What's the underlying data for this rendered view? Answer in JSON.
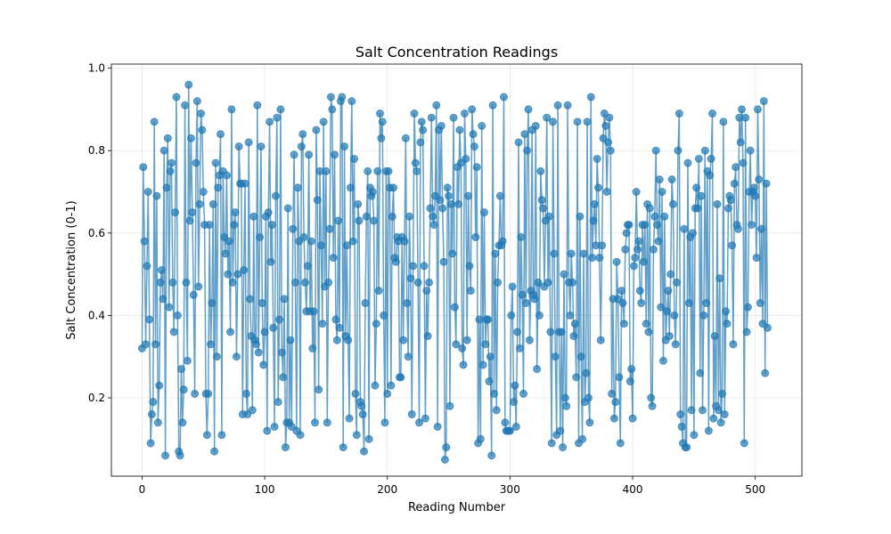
{
  "chart_data": {
    "type": "line",
    "title": "Salt Concentration Readings",
    "xlabel": "Reading Number",
    "ylabel": "Salt Concentration (0-1)",
    "xlim": [
      -25,
      538
    ],
    "ylim": [
      0.01,
      1.01
    ],
    "xticks": [
      0,
      100,
      200,
      300,
      400,
      500
    ],
    "yticks": [
      0.2,
      0.4,
      0.6,
      0.8,
      1.0
    ],
    "xtick_labels": [
      "0",
      "100",
      "200",
      "300",
      "400",
      "500"
    ],
    "ytick_labels": [
      "0.2",
      "0.4",
      "0.6",
      "0.8",
      "1.0"
    ],
    "grid": true,
    "markers": true,
    "color": "#1f77b4",
    "series": [
      {
        "x_start": 0,
        "values": [
          0.32,
          0.76,
          0.58,
          0.33,
          0.52,
          0.7,
          0.39,
          0.09,
          0.16,
          0.19,
          0.87,
          0.33,
          0.69,
          0.14,
          0.23,
          0.48,
          0.51,
          0.44,
          0.8,
          0.06,
          0.71,
          0.83,
          0.42,
          0.75,
          0.77,
          0.48,
          0.36,
          0.65,
          0.93,
          0.4,
          0.07,
          0.06,
          0.27,
          0.14,
          0.22,
          0.91,
          0.48,
          0.29,
          0.96,
          0.63,
          0.83,
          0.65,
          0.45,
          0.21,
          0.77,
          0.92,
          0.47,
          0.67,
          0.89,
          0.85,
          0.7,
          0.62,
          0.21,
          0.11,
          0.21,
          0.62,
          0.33,
          0.43,
          0.67,
          0.07,
          0.77,
          0.3,
          0.71,
          0.74,
          0.84,
          0.11,
          0.75,
          0.59,
          0.55,
          0.74,
          0.5,
          0.58,
          0.36,
          0.9,
          0.48,
          0.62,
          0.65,
          0.3,
          0.5,
          0.81,
          0.72,
          0.72,
          0.16,
          0.51,
          0.72,
          0.21,
          0.16,
          0.82,
          0.44,
          0.35,
          0.17,
          0.64,
          0.34,
          0.33,
          0.91,
          0.31,
          0.59,
          0.81,
          0.43,
          0.28,
          0.36,
          0.64,
          0.12,
          0.65,
          0.87,
          0.53,
          0.62,
          0.37,
          0.13,
          0.69,
          0.88,
          0.19,
          0.39,
          0.9,
          0.31,
          0.25,
          0.44,
          0.08,
          0.14,
          0.66,
          0.14,
          0.34,
          0.13,
          0.61,
          0.79,
          0.48,
          0.12,
          0.71,
          0.58,
          0.11,
          0.81,
          0.84,
          0.59,
          0.48,
          0.41,
          0.52,
          0.79,
          0.41,
          0.58,
          0.32,
          0.41,
          0.14,
          0.85,
          0.68,
          0.22,
          0.75,
          0.57,
          0.38,
          0.87,
          0.47,
          0.75,
          0.14,
          0.48,
          0.61,
          0.93,
          0.9,
          0.54,
          0.79,
          0.39,
          0.34,
          0.63,
          0.37,
          0.92,
          0.93,
          0.08,
          0.81,
          0.35,
          0.57,
          0.34,
          0.15,
          0.71,
          0.92,
          0.58,
          0.78,
          0.21,
          0.11,
          0.67,
          0.63,
          0.19,
          0.18,
          0.16,
          0.07,
          0.43,
          0.64,
          0.75,
          0.1,
          0.71,
          0.69,
          0.7,
          0.63,
          0.23,
          0.38,
          0.75,
          0.46,
          0.89,
          0.83,
          0.87,
          0.4,
          0.14,
          0.75,
          0.21,
          0.75,
          0.71,
          0.23,
          0.64,
          0.71,
          0.54,
          0.53,
          0.59,
          0.58,
          0.25,
          0.25,
          0.59,
          0.34,
          0.58,
          0.83,
          0.43,
          0.3,
          0.64,
          0.49,
          0.16,
          0.52,
          0.89,
          0.77,
          0.75,
          0.48,
          0.14,
          0.82,
          0.87,
          0.85,
          0.52,
          0.15,
          0.46,
          0.35,
          0.48,
          0.66,
          0.88,
          0.64,
          0.62,
          0.69,
          0.91,
          0.13,
          0.85,
          0.68,
          0.86,
          0.66,
          0.53,
          0.05,
          0.08,
          0.71,
          0.69,
          0.18,
          0.67,
          0.55,
          0.88,
          0.42,
          0.33,
          0.76,
          0.67,
          0.85,
          0.77,
          0.32,
          0.28,
          0.89,
          0.78,
          0.34,
          0.69,
          0.52,
          0.46,
          0.9,
          0.84,
          0.81,
          0.59,
          0.76,
          0.09,
          0.39,
          0.1,
          0.86,
          0.28,
          0.65,
          0.33,
          0.39,
          0.39,
          0.24,
          0.3,
          0.06,
          0.91,
          0.21,
          0.55,
          0.17,
          0.48,
          0.57,
          0.69,
          0.57,
          0.58,
          0.93,
          0.14,
          0.12,
          0.12,
          0.12,
          0.12,
          0.4,
          0.47,
          0.19,
          0.23,
          0.13,
          0.36,
          0.82,
          0.32,
          0.59,
          0.45,
          0.21,
          0.84,
          0.43,
          0.8,
          0.9,
          0.34,
          0.46,
          0.85,
          0.45,
          0.44,
          0.86,
          0.27,
          0.48,
          0.4,
          0.75,
          0.68,
          0.66,
          0.47,
          0.63,
          0.88,
          0.48,
          0.64,
          0.36,
          0.09,
          0.87,
          0.55,
          0.3,
          0.11,
          0.91,
          0.36,
          0.12,
          0.36,
          0.08,
          0.5,
          0.2,
          0.18,
          0.91,
          0.48,
          0.4,
          0.55,
          0.48,
          0.35,
          0.38,
          0.25,
          0.87,
          0.09,
          0.64,
          0.3,
          0.1,
          0.55,
          0.19,
          0.26,
          0.87,
          0.2,
          0.14,
          0.93,
          0.54,
          0.63,
          0.67,
          0.57,
          0.78,
          0.71,
          0.54,
          0.34,
          0.57,
          0.83,
          0.89,
          0.86,
          0.7,
          0.82,
          0.88,
          0.8,
          0.21,
          0.44,
          0.15,
          0.19,
          0.53,
          0.44,
          0.25,
          0.09,
          0.46,
          0.43,
          0.38,
          0.56,
          0.6,
          0.62,
          0.62,
          0.24,
          0.27,
          0.15,
          0.52,
          0.54,
          0.7,
          0.56,
          0.58,
          0.46,
          0.43,
          0.62,
          0.53,
          0.62,
          0.38,
          0.67,
          0.36,
          0.66,
          0.2,
          0.18,
          0.56,
          0.64,
          0.8,
          0.62,
          0.58,
          0.73,
          0.42,
          0.7,
          0.29,
          0.64,
          0.34,
          0.41,
          0.46,
          0.35,
          0.5,
          0.73,
          0.67,
          0.4,
          0.33,
          0.48,
          0.8,
          0.89,
          0.16,
          0.13,
          0.09,
          0.61,
          0.08,
          0.08,
          0.77,
          0.43,
          0.59,
          0.17,
          0.6,
          0.11,
          0.66,
          0.71,
          0.66,
          0.78,
          0.26,
          0.69,
          0.17,
          0.4,
          0.8,
          0.43,
          0.75,
          0.12,
          0.74,
          0.78,
          0.89,
          0.15,
          0.35,
          0.18,
          0.67,
          0.17,
          0.49,
          0.14,
          0.21,
          0.87,
          0.16,
          0.41,
          0.38,
          0.66,
          0.69,
          0.68,
          0.57,
          0.33,
          0.72,
          0.76,
          0.62,
          0.61,
          0.88,
          0.82,
          0.9,
          0.77,
          0.09,
          0.88,
          0.36,
          0.42,
          0.7,
          0.8,
          0.62,
          0.7,
          0.71,
          0.69,
          0.54,
          0.9,
          0.73,
          0.43,
          0.61,
          0.38,
          0.92,
          0.26,
          0.72,
          0.37
        ]
      }
    ]
  }
}
